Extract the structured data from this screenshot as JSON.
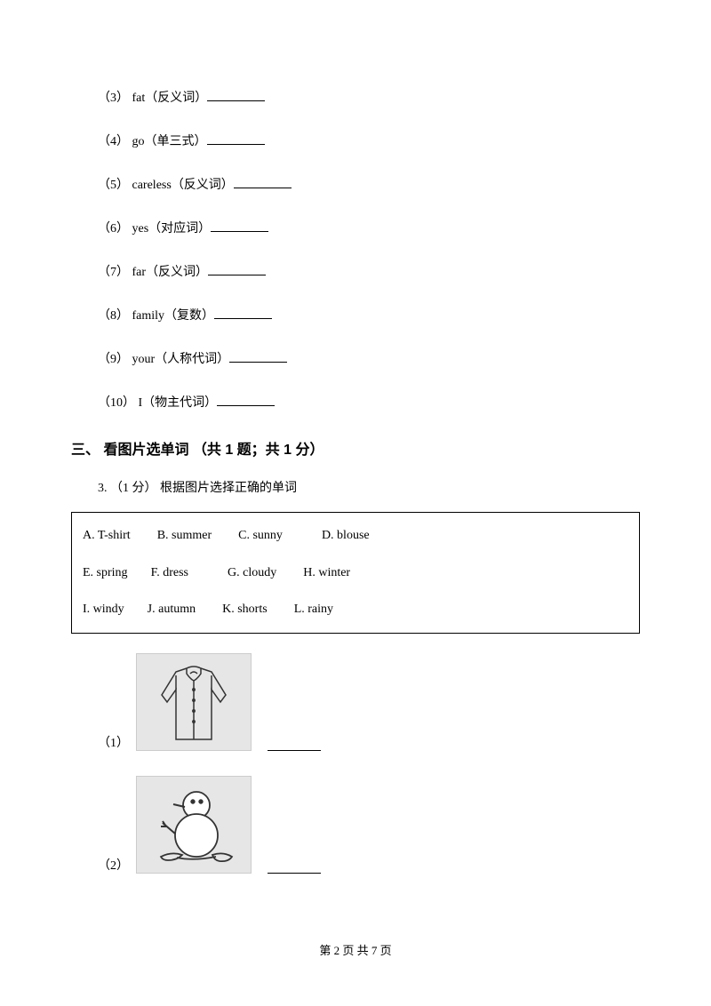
{
  "questions": [
    {
      "num": "（3）",
      "word": "fat",
      "note": "（反义词）"
    },
    {
      "num": "（4）",
      "word": "go",
      "note": "（单三式）"
    },
    {
      "num": "（5）",
      "word": "careless",
      "note": "（反义词）"
    },
    {
      "num": "（6）",
      "word": "yes",
      "note": "（对应词）"
    },
    {
      "num": "（7）",
      "word": "far",
      "note": "（反义词）"
    },
    {
      "num": "（8）",
      "word": "family",
      "note": "（复数）"
    },
    {
      "num": "（9）",
      "word": "your",
      "note": "（人称代词）"
    },
    {
      "num": "（10）",
      "word": "I",
      "note": "（物主代词）"
    }
  ],
  "section": {
    "heading": "三、 看图片选单词 （共 1 题；共 1 分）",
    "prompt_num": "3.",
    "prompt_points": "（1 分）",
    "prompt_text": "根据图片选择正确的单词"
  },
  "word_box": {
    "row1": [
      {
        "label": "A.",
        "word": "T-shirt",
        "gap": 30
      },
      {
        "label": "B.",
        "word": "summer",
        "gap": 30
      },
      {
        "label": "C.",
        "word": "sunny",
        "gap": 44
      },
      {
        "label": "D.",
        "word": "blouse",
        "gap": 0
      }
    ],
    "row2": [
      {
        "label": "E.",
        "word": "spring",
        "gap": 26
      },
      {
        "label": "F.",
        "word": "dress",
        "gap": 44
      },
      {
        "label": "G.",
        "word": "cloudy",
        "gap": 30
      },
      {
        "label": "H.",
        "word": "winter",
        "gap": 0
      }
    ],
    "row3": [
      {
        "label": "I.",
        "word": "windy",
        "gap": 26
      },
      {
        "label": "J.",
        "word": "autumn",
        "gap": 30
      },
      {
        "label": "K.",
        "word": "shorts",
        "gap": 30
      },
      {
        "label": "L.",
        "word": "rainy",
        "gap": 0
      }
    ]
  },
  "img_items": {
    "i1": "（1）",
    "i2": "（2）"
  },
  "footer": {
    "text": "第 2 页 共 7 页"
  },
  "colors": {
    "text": "#000000",
    "img_bg": "#e6e6e6",
    "stroke": "#333333"
  }
}
